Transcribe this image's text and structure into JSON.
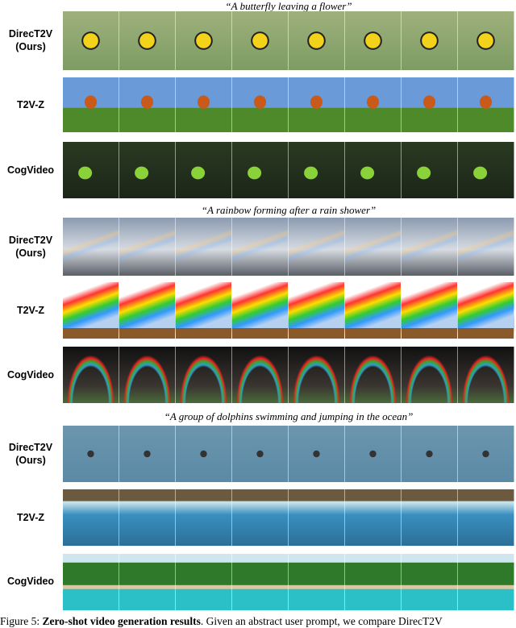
{
  "groups": [
    {
      "prompt": "“A butterfly leaving a flower”"
    },
    {
      "prompt": "“A rainbow forming after a rain shower”"
    },
    {
      "prompt": "“A group of dolphins swimming and jumping in the ocean”"
    }
  ],
  "methods": {
    "direct_line1": "DirecT2V",
    "direct_line2": "(Ours)",
    "t2vz": "T2V-Z",
    "cogvideo": "CogVideo"
  },
  "caption": {
    "prefix": "Figure 5: ",
    "bold": "Zero-shot video generation results",
    "rest": ". Given an abstract user prompt, we compare DirecT2V"
  }
}
